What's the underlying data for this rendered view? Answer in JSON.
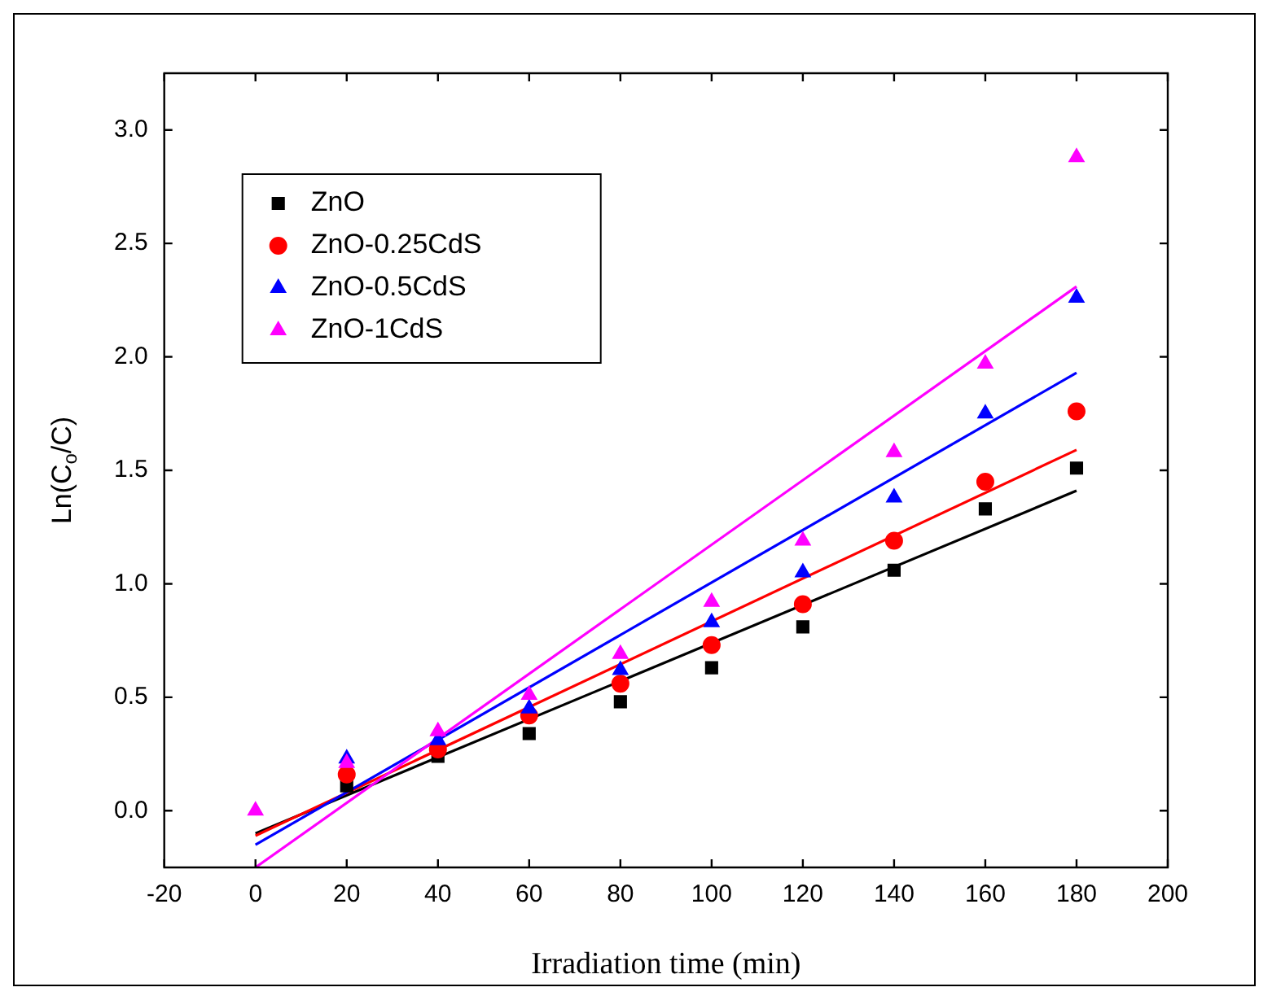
{
  "chart_data": {
    "type": "scatter",
    "xlabel": "Irradiation time (min)",
    "ylabel": "Ln(C$_{o}$/C)",
    "x": [
      0,
      20,
      40,
      60,
      80,
      100,
      120,
      140,
      160,
      180
    ],
    "series": [
      {
        "name": "ZnO",
        "color": "#000000",
        "marker": "square",
        "values": [
          null,
          0.11,
          0.24,
          0.34,
          0.48,
          0.63,
          0.81,
          1.06,
          1.33,
          1.51
        ]
      },
      {
        "name": "ZnO-0.25CdS",
        "color": "#ff0000",
        "marker": "circle",
        "values": [
          null,
          0.16,
          0.27,
          0.42,
          0.56,
          0.73,
          0.91,
          1.19,
          1.45,
          1.76
        ]
      },
      {
        "name": "ZnO-0.5CdS",
        "color": "#0000ff",
        "marker": "triangle",
        "values": [
          null,
          0.23,
          0.31,
          0.45,
          0.62,
          0.83,
          1.05,
          1.38,
          1.75,
          2.26
        ]
      },
      {
        "name": "ZnO-1CdS",
        "color": "#ff00ff",
        "marker": "triangle",
        "values": [
          0,
          0.21,
          0.35,
          0.51,
          0.69,
          0.92,
          1.19,
          1.58,
          1.97,
          2.88
        ]
      },
      {
        "type": "line",
        "color": "#000000",
        "values": [
          -0.1,
          null,
          null,
          null,
          null,
          null,
          null,
          null,
          null,
          1.41
        ]
      },
      {
        "type": "line",
        "color": "#ff0000",
        "values": [
          -0.11,
          null,
          null,
          null,
          null,
          null,
          null,
          null,
          null,
          1.59
        ]
      },
      {
        "type": "line",
        "color": "#0000ff",
        "values": [
          -0.15,
          null,
          null,
          null,
          null,
          null,
          null,
          null,
          null,
          1.93
        ]
      },
      {
        "type": "line",
        "color": "#ff00ff",
        "values": [
          -0.25,
          null,
          null,
          null,
          null,
          null,
          null,
          null,
          null,
          2.31
        ]
      }
    ],
    "xlim": [
      -20,
      200
    ],
    "xticks": [
      -20,
      0,
      20,
      40,
      60,
      80,
      100,
      120,
      140,
      160,
      180,
      200
    ],
    "ylim": [
      -0.25,
      3.25
    ],
    "yticks": [
      {
        "value": 0,
        "label": "0.0"
      },
      {
        "value": 0.5,
        "label": "0.5"
      },
      {
        "value": 1,
        "label": "1.0"
      },
      {
        "value": 1.5,
        "label": "1.5"
      },
      {
        "value": 2,
        "label": "2.0"
      },
      {
        "value": 2.5,
        "label": "2.5"
      },
      {
        "value": 3,
        "label": "3.0"
      }
    ],
    "grid": false,
    "legend": "top left"
  }
}
